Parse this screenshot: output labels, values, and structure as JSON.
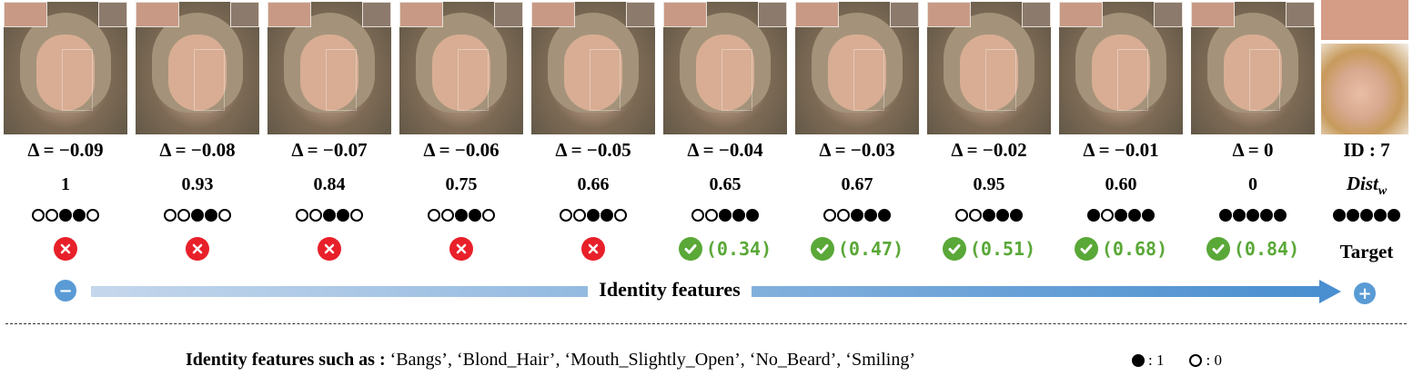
{
  "columns": [
    {
      "delta": "Δ = −0.09",
      "dist": "1",
      "dots": [
        0,
        0,
        1,
        1,
        0
      ],
      "ok": false,
      "score": ""
    },
    {
      "delta": "Δ = −0.08",
      "dist": "0.93",
      "dots": [
        0,
        0,
        1,
        1,
        0
      ],
      "ok": false,
      "score": ""
    },
    {
      "delta": "Δ = −0.07",
      "dist": "0.84",
      "dots": [
        0,
        0,
        1,
        1,
        0
      ],
      "ok": false,
      "score": ""
    },
    {
      "delta": "Δ = −0.06",
      "dist": "0.75",
      "dots": [
        0,
        0,
        1,
        1,
        0
      ],
      "ok": false,
      "score": ""
    },
    {
      "delta": "Δ = −0.05",
      "dist": "0.66",
      "dots": [
        0,
        0,
        1,
        1,
        0
      ],
      "ok": false,
      "score": ""
    },
    {
      "delta": "Δ = −0.04",
      "dist": "0.65",
      "dots": [
        0,
        0,
        1,
        1,
        1
      ],
      "ok": true,
      "score": "(0.34)"
    },
    {
      "delta": "Δ = −0.03",
      "dist": "0.67",
      "dots": [
        0,
        0,
        1,
        1,
        1
      ],
      "ok": true,
      "score": "(0.47)"
    },
    {
      "delta": "Δ = −0.02",
      "dist": "0.95",
      "dots": [
        0,
        0,
        1,
        1,
        1
      ],
      "ok": true,
      "score": "(0.51)"
    },
    {
      "delta": "Δ = −0.01",
      "dist": "0.60",
      "dots": [
        1,
        0,
        1,
        1,
        1
      ],
      "ok": true,
      "score": "(0.68)"
    },
    {
      "delta": "Δ = 0",
      "dist": "0",
      "dots": [
        1,
        1,
        1,
        1,
        1
      ],
      "ok": true,
      "score": "(0.84)"
    }
  ],
  "target": {
    "id_label": "ID : 7",
    "dist_label": "Dist",
    "dist_sub": "w",
    "dots": [
      1,
      1,
      1,
      1,
      1
    ],
    "label": "Target"
  },
  "arrow": {
    "label": "Identity features",
    "minus": "−",
    "plus": "+",
    "gradient_start": "#c5d7ec",
    "gradient_end": "#4a8fd0"
  },
  "footer": {
    "lead": "Identity features such as :",
    "features": "‘Bangs’, ‘Blond_Hair’,  ‘Mouth_Slightly_Open’,  ‘No_Beard’,  ‘Smiling’",
    "legend_on": ": 1",
    "legend_off": ": 0"
  },
  "colors": {
    "fail": "#e8202a",
    "pass": "#5aa838"
  }
}
